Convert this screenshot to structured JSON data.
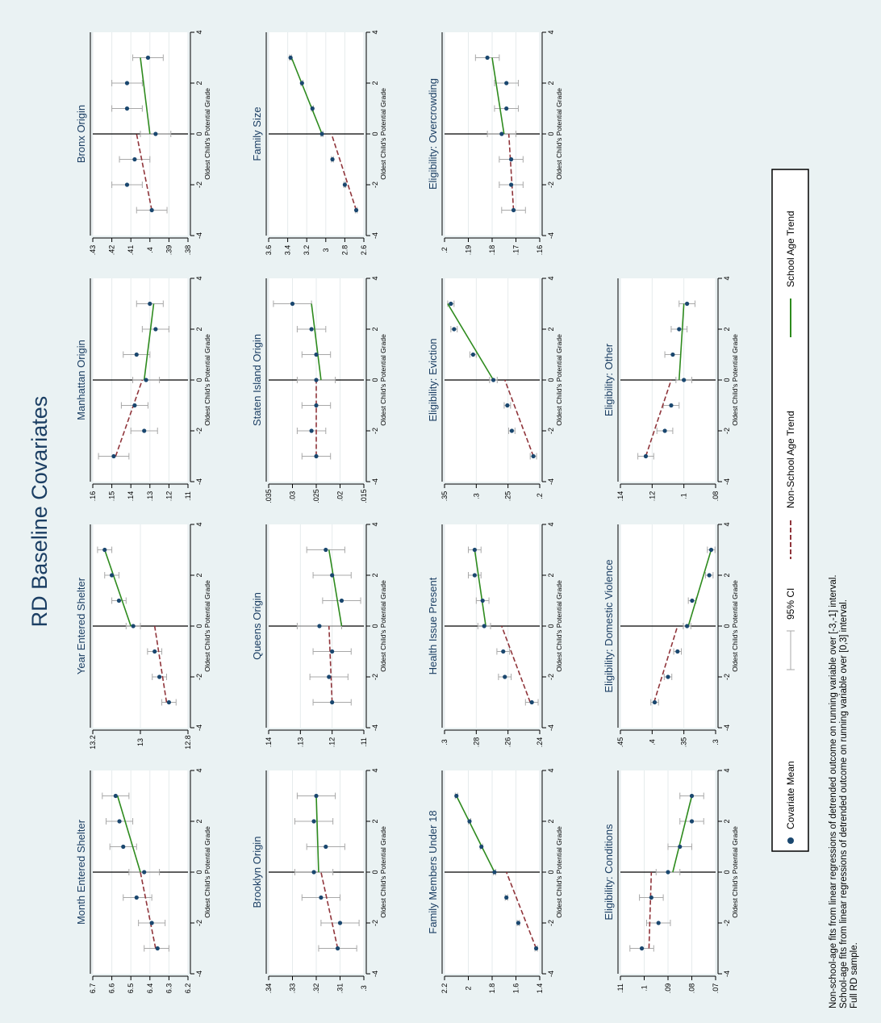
{
  "title": "RD Baseline Covariates",
  "legend": {
    "items": [
      {
        "key": "mean",
        "label": "Covariate Mean"
      },
      {
        "key": "ci",
        "label": "95% CI"
      },
      {
        "key": "nonschool",
        "label": "Non-School Age Trend"
      },
      {
        "key": "school",
        "label": "School Age Trend"
      }
    ]
  },
  "notes": [
    "Non-school-age fits from linear regressions of detrended outcome on running variable over [-3,-1] interval.",
    "School-age fits from linear regressions of detrended outcome on running variable over [0,3] interval.",
    "Full RD sample."
  ],
  "colors": {
    "mean": "#1a476f",
    "ci": "#a8a8a8",
    "nonschool": "#90353b",
    "school": "#2e8b1e",
    "background": "#eaf2f3",
    "title": "#1b3e63"
  },
  "chart_data": [
    {
      "type": "scatter",
      "title": "Month Entered Shelter",
      "xlabel": "Oldest Child's Potential Grade",
      "x": [
        -3,
        -2,
        -1,
        0,
        1,
        2,
        3
      ],
      "xlim": [
        -4,
        4
      ],
      "xticks": [
        -4,
        -2,
        0,
        2,
        4
      ],
      "ylim": [
        6.2,
        6.7
      ],
      "yticks": [
        6.2,
        6.3,
        6.4,
        6.5,
        6.6,
        6.7
      ],
      "ytick_labels": [
        "6.2",
        "6.3",
        "6.4",
        "6.5",
        "6.6",
        "6.7"
      ],
      "y": [
        6.36,
        6.39,
        6.47,
        6.43,
        6.54,
        6.56,
        6.58
      ],
      "ci_low": [
        6.3,
        6.32,
        6.39,
        6.35,
        6.47,
        6.49,
        6.51
      ],
      "ci_high": [
        6.43,
        6.46,
        6.54,
        6.51,
        6.61,
        6.63,
        6.65
      ],
      "nonschool_fit": [
        6.37,
        6.45
      ],
      "school_fit": [
        6.45,
        6.57
      ]
    },
    {
      "type": "scatter",
      "title": "Year Entered Shelter",
      "xlabel": "Oldest Child's Potential Grade",
      "x": [
        -3,
        -2,
        -1,
        0,
        1,
        2,
        3
      ],
      "xlim": [
        -4,
        4
      ],
      "xticks": [
        -4,
        -2,
        0,
        2,
        4
      ],
      "ylim": [
        12.8,
        13.2
      ],
      "yticks": [
        12.8,
        13,
        13.2
      ],
      "ytick_labels": [
        "12.8",
        "13",
        "13.2"
      ],
      "y": [
        12.88,
        12.92,
        12.94,
        13.03,
        13.09,
        13.12,
        13.15
      ],
      "ci_low": [
        12.85,
        12.89,
        12.91,
        13.0,
        13.06,
        13.09,
        13.12
      ],
      "ci_high": [
        12.91,
        12.95,
        12.97,
        13.06,
        13.12,
        13.15,
        13.18
      ],
      "nonschool_fit": [
        12.89,
        12.94
      ],
      "school_fit": [
        13.04,
        13.15
      ]
    },
    {
      "type": "scatter",
      "title": "Manhattan Origin",
      "xlabel": "Oldest Child's Potential Grade",
      "x": [
        -3,
        -2,
        -1,
        0,
        1,
        2,
        3
      ],
      "xlim": [
        -4,
        4
      ],
      "xticks": [
        -4,
        -2,
        0,
        2,
        4
      ],
      "ylim": [
        0.11,
        0.16
      ],
      "yticks": [
        0.11,
        0.12,
        0.13,
        0.14,
        0.15,
        0.16
      ],
      "ytick_labels": [
        ".11",
        ".12",
        ".13",
        ".14",
        ".15",
        ".16"
      ],
      "y": [
        0.149,
        0.133,
        0.138,
        0.132,
        0.137,
        0.127,
        0.13
      ],
      "ci_low": [
        0.141,
        0.126,
        0.131,
        0.125,
        0.13,
        0.12,
        0.123
      ],
      "ci_high": [
        0.157,
        0.14,
        0.145,
        0.139,
        0.144,
        0.134,
        0.137
      ],
      "nonschool_fit": [
        0.148,
        0.134
      ],
      "school_fit": [
        0.133,
        0.128
      ]
    },
    {
      "type": "scatter",
      "title": "Bronx Origin",
      "xlabel": "Oldest Child's Potential Grade",
      "x": [
        -3,
        -2,
        -1,
        0,
        1,
        2,
        3
      ],
      "xlim": [
        -4,
        4
      ],
      "xticks": [
        -4,
        -2,
        0,
        2,
        4
      ],
      "ylim": [
        0.38,
        0.43
      ],
      "yticks": [
        0.38,
        0.39,
        0.4,
        0.41,
        0.42,
        0.43
      ],
      "ytick_labels": [
        ".38",
        ".39",
        ".4",
        ".41",
        ".42",
        ".43"
      ],
      "y": [
        0.399,
        0.412,
        0.408,
        0.397,
        0.412,
        0.412,
        0.401
      ],
      "ci_low": [
        0.391,
        0.404,
        0.4,
        0.389,
        0.404,
        0.404,
        0.393
      ],
      "ci_high": [
        0.407,
        0.42,
        0.416,
        0.405,
        0.42,
        0.42,
        0.409
      ],
      "nonschool_fit": [
        0.399,
        0.407
      ],
      "school_fit": [
        0.4,
        0.405
      ]
    },
    {
      "type": "scatter",
      "title": "Brooklyn Origin",
      "xlabel": "Oldest Child's Potential Grade",
      "x": [
        -3,
        -2,
        -1,
        0,
        1,
        2,
        3
      ],
      "xlim": [
        -4,
        4
      ],
      "xticks": [
        -4,
        -2,
        0,
        2,
        4
      ],
      "ylim": [
        0.3,
        0.34
      ],
      "yticks": [
        0.3,
        0.31,
        0.32,
        0.33,
        0.34
      ],
      "ytick_labels": [
        ".3",
        ".31",
        ".32",
        ".33",
        ".34"
      ],
      "y": [
        0.311,
        0.31,
        0.318,
        0.321,
        0.316,
        0.321,
        0.32
      ],
      "ci_low": [
        0.303,
        0.302,
        0.31,
        0.313,
        0.308,
        0.313,
        0.312
      ],
      "ci_high": [
        0.319,
        0.318,
        0.326,
        0.329,
        0.324,
        0.329,
        0.328
      ],
      "nonschool_fit": [
        0.311,
        0.318
      ],
      "school_fit": [
        0.319,
        0.32
      ]
    },
    {
      "type": "scatter",
      "title": "Queens Origin",
      "xlabel": "Oldest Child's Potential Grade",
      "x": [
        -3,
        -2,
        -1,
        0,
        1,
        2,
        3
      ],
      "xlim": [
        -4,
        4
      ],
      "xticks": [
        -4,
        -2,
        0,
        2,
        4
      ],
      "ylim": [
        0.11,
        0.14
      ],
      "yticks": [
        0.11,
        0.12,
        0.13,
        0.14
      ],
      "ytick_labels": [
        ".11",
        ".12",
        ".13",
        ".14"
      ],
      "y": [
        0.12,
        0.121,
        0.12,
        0.124,
        0.117,
        0.12,
        0.122
      ],
      "ci_low": [
        0.114,
        0.115,
        0.114,
        0.117,
        0.111,
        0.114,
        0.116
      ],
      "ci_high": [
        0.126,
        0.127,
        0.126,
        0.131,
        0.123,
        0.126,
        0.128
      ],
      "nonschool_fit": [
        0.12,
        0.121
      ],
      "school_fit": [
        0.117,
        0.121
      ]
    },
    {
      "type": "scatter",
      "title": "Staten Island Origin",
      "xlabel": "Oldest Child's Potential Grade",
      "x": [
        -3,
        -2,
        -1,
        0,
        1,
        2,
        3
      ],
      "xlim": [
        -4,
        4
      ],
      "xticks": [
        -4,
        -2,
        0,
        2,
        4
      ],
      "ylim": [
        0.015,
        0.035
      ],
      "yticks": [
        0.015,
        0.02,
        0.025,
        0.03,
        0.035
      ],
      "ytick_labels": [
        ".015",
        ".02",
        ".025",
        ".03",
        ".035"
      ],
      "y": [
        0.025,
        0.026,
        0.025,
        0.025,
        0.025,
        0.026,
        0.03
      ],
      "ci_low": [
        0.022,
        0.023,
        0.022,
        0.021,
        0.022,
        0.023,
        0.026
      ],
      "ci_high": [
        0.028,
        0.029,
        0.028,
        0.029,
        0.028,
        0.029,
        0.034
      ],
      "nonschool_fit": [
        0.025,
        0.025
      ],
      "school_fit": [
        0.024,
        0.026
      ]
    },
    {
      "type": "scatter",
      "title": "Family Size",
      "xlabel": "Oldest Child's Potential Grade",
      "x": [
        -3,
        -2,
        -1,
        0,
        1,
        2,
        3
      ],
      "xlim": [
        -4,
        4
      ],
      "xticks": [
        -4,
        -2,
        0,
        2,
        4
      ],
      "ylim": [
        2.6,
        3.6
      ],
      "yticks": [
        2.6,
        2.8,
        3,
        3.2,
        3.4,
        3.6
      ],
      "ytick_labels": [
        "2.6",
        "2.8",
        "3",
        "3.2",
        "3.4",
        "3.6"
      ],
      "y": [
        2.68,
        2.8,
        2.93,
        3.04,
        3.14,
        3.25,
        3.37
      ],
      "ci_low": [
        2.67,
        2.79,
        2.92,
        3.03,
        3.13,
        3.24,
        3.36
      ],
      "ci_high": [
        2.69,
        2.81,
        2.94,
        3.05,
        3.15,
        3.26,
        3.38
      ],
      "nonschool_fit": [
        2.68,
        2.94
      ],
      "school_fit": [
        3.04,
        3.36
      ]
    },
    {
      "type": "scatter",
      "title": "Family Members Under 18",
      "xlabel": "Oldest Child's Potential Grade",
      "x": [
        -3,
        -2,
        -1,
        0,
        1,
        2,
        3
      ],
      "xlim": [
        -4,
        4
      ],
      "xticks": [
        -4,
        -2,
        0,
        2,
        4
      ],
      "ylim": [
        1.4,
        2.2
      ],
      "yticks": [
        1.4,
        1.6,
        1.8,
        2,
        2.2
      ],
      "ytick_labels": [
        "1.4",
        "1.6",
        "1.8",
        "2",
        "2.2"
      ],
      "y": [
        1.43,
        1.58,
        1.68,
        1.78,
        1.89,
        1.99,
        2.1
      ],
      "ci_low": [
        1.42,
        1.57,
        1.67,
        1.77,
        1.88,
        1.98,
        2.09
      ],
      "ci_high": [
        1.44,
        1.59,
        1.69,
        1.79,
        1.9,
        2,
        2.11
      ],
      "nonschool_fit": [
        1.43,
        1.68
      ],
      "school_fit": [
        1.78,
        2.1
      ]
    },
    {
      "type": "scatter",
      "title": "Health Issue Present",
      "xlabel": "Oldest Child's Potential Grade",
      "x": [
        -3,
        -2,
        -1,
        0,
        1,
        2,
        3
      ],
      "xlim": [
        -4,
        4
      ],
      "xticks": [
        -4,
        -2,
        0,
        2,
        4
      ],
      "ylim": [
        0.24,
        0.3
      ],
      "yticks": [
        0.24,
        0.26,
        0.28,
        0.3
      ],
      "ytick_labels": [
        ".24",
        ".26",
        ".28",
        ".3"
      ],
      "y": [
        0.245,
        0.262,
        0.263,
        0.275,
        0.276,
        0.281,
        0.281
      ],
      "ci_low": [
        0.241,
        0.258,
        0.259,
        0.271,
        0.272,
        0.277,
        0.277
      ],
      "ci_high": [
        0.249,
        0.266,
        0.267,
        0.279,
        0.28,
        0.285,
        0.285
      ],
      "nonschool_fit": [
        0.246,
        0.264
      ],
      "school_fit": [
        0.274,
        0.281
      ]
    },
    {
      "type": "scatter",
      "title": "Eligibility: Eviction",
      "xlabel": "Oldest Child's Potential Grade",
      "x": [
        -3,
        -2,
        -1,
        0,
        1,
        2,
        3
      ],
      "xlim": [
        -4,
        4
      ],
      "xticks": [
        -4,
        -2,
        0,
        2,
        4
      ],
      "ylim": [
        0.2,
        0.35
      ],
      "yticks": [
        0.2,
        0.25,
        0.3,
        0.35
      ],
      "ytick_labels": [
        ".2",
        ".25",
        ".3",
        ".35"
      ],
      "y": [
        0.21,
        0.244,
        0.251,
        0.273,
        0.305,
        0.335,
        0.34
      ],
      "ci_low": [
        0.205,
        0.239,
        0.246,
        0.267,
        0.3,
        0.33,
        0.335
      ],
      "ci_high": [
        0.215,
        0.249,
        0.256,
        0.279,
        0.31,
        0.34,
        0.345
      ],
      "nonschool_fit": [
        0.21,
        0.255
      ],
      "school_fit": [
        0.273,
        0.345
      ]
    },
    {
      "type": "scatter",
      "title": "Eligibility: Overcrowding",
      "xlabel": "Oldest Child's Potential Grade",
      "x": [
        -3,
        -2,
        -1,
        0,
        1,
        2,
        3
      ],
      "xlim": [
        -4,
        4
      ],
      "xticks": [
        -4,
        -2,
        0,
        2,
        4
      ],
      "ylim": [
        0.16,
        0.2
      ],
      "yticks": [
        0.16,
        0.17,
        0.18,
        0.19,
        0.2
      ],
      "ytick_labels": [
        ".16",
        ".17",
        ".18",
        ".19",
        ".2"
      ],
      "y": [
        0.171,
        0.172,
        0.172,
        0.176,
        0.174,
        0.174,
        0.182
      ],
      "ci_low": [
        0.166,
        0.167,
        0.167,
        0.17,
        0.169,
        0.169,
        0.177
      ],
      "ci_high": [
        0.176,
        0.177,
        0.177,
        0.182,
        0.179,
        0.179,
        0.187
      ],
      "nonschool_fit": [
        0.171,
        0.173
      ],
      "school_fit": [
        0.175,
        0.18
      ]
    },
    {
      "type": "scatter",
      "title": "Eligibility: Conditions",
      "xlabel": "Oldest Child's Potential Grade",
      "x": [
        -3,
        -2,
        -1,
        0,
        1,
        2,
        3
      ],
      "xlim": [
        -4,
        4
      ],
      "xticks": [
        -4,
        -2,
        0,
        2,
        4
      ],
      "ylim": [
        0.07,
        0.11
      ],
      "yticks": [
        0.07,
        0.08,
        0.09,
        0.1,
        0.11
      ],
      "ytick_labels": [
        ".07",
        ".08",
        ".09",
        ".1",
        ".11"
      ],
      "y": [
        0.101,
        0.094,
        0.097,
        0.09,
        0.085,
        0.08,
        0.08
      ],
      "ci_low": [
        0.096,
        0.089,
        0.092,
        0.085,
        0.08,
        0.075,
        0.075
      ],
      "ci_high": [
        0.106,
        0.099,
        0.102,
        0.095,
        0.09,
        0.085,
        0.085
      ],
      "nonschool_fit": [
        0.098,
        0.097
      ],
      "school_fit": [
        0.088,
        0.08
      ]
    },
    {
      "type": "scatter",
      "title": "Eligibility: Domestic Violence",
      "xlabel": "Oldest Child's Potential Grade",
      "x": [
        -3,
        -2,
        -1,
        0,
        1,
        2,
        3
      ],
      "xlim": [
        -4,
        4
      ],
      "xticks": [
        -4,
        -2,
        0,
        2,
        4
      ],
      "ylim": [
        0.3,
        0.45
      ],
      "yticks": [
        0.3,
        0.35,
        0.4,
        0.45
      ],
      "ytick_labels": [
        ".3",
        ".35",
        ".4",
        ".45"
      ],
      "y": [
        0.396,
        0.375,
        0.36,
        0.345,
        0.337,
        0.31,
        0.307
      ],
      "ci_low": [
        0.39,
        0.369,
        0.354,
        0.339,
        0.331,
        0.304,
        0.301
      ],
      "ci_high": [
        0.402,
        0.381,
        0.366,
        0.351,
        0.343,
        0.316,
        0.313
      ],
      "nonschool_fit": [
        0.397,
        0.36
      ],
      "school_fit": [
        0.343,
        0.307
      ]
    },
    {
      "type": "scatter",
      "title": "Eligibility: Other",
      "xlabel": "Oldest Child's Potential Grade",
      "x": [
        -3,
        -2,
        -1,
        0,
        1,
        2,
        3
      ],
      "xlim": [
        -4,
        4
      ],
      "xticks": [
        -4,
        -2,
        0,
        2,
        4
      ],
      "ylim": [
        0.08,
        0.14
      ],
      "yticks": [
        0.08,
        0.1,
        0.12,
        0.14
      ],
      "ytick_labels": [
        ".08",
        ".1",
        ".12",
        ".14"
      ],
      "y": [
        0.124,
        0.112,
        0.108,
        0.1,
        0.107,
        0.103,
        0.098
      ],
      "ci_low": [
        0.119,
        0.107,
        0.103,
        0.095,
        0.102,
        0.098,
        0.093
      ],
      "ci_high": [
        0.129,
        0.117,
        0.113,
        0.105,
        0.112,
        0.108,
        0.103
      ],
      "nonschool_fit": [
        0.124,
        0.108
      ],
      "school_fit": [
        0.103,
        0.1
      ]
    }
  ]
}
